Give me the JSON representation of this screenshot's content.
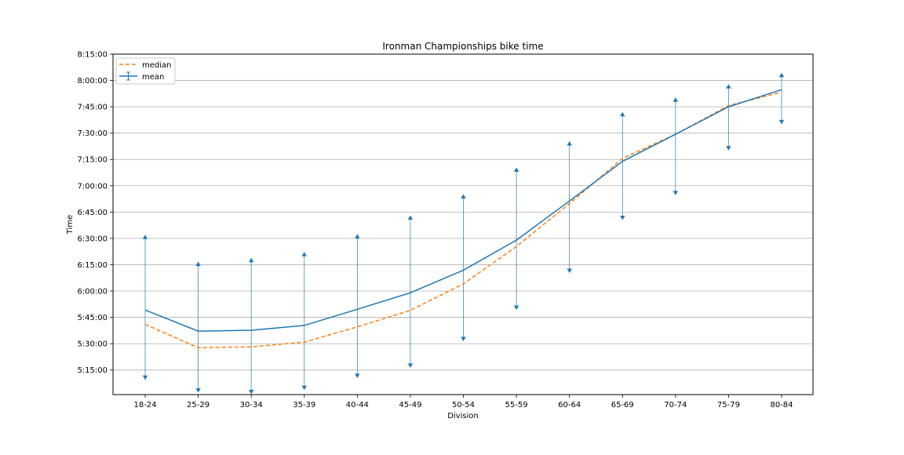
{
  "chart_data": {
    "type": "line",
    "title": "Ironman Championships bike time",
    "xlabel": "Division",
    "ylabel": "Time",
    "categories": [
      "18-24",
      "25-29",
      "30-34",
      "35-39",
      "40-44",
      "45-49",
      "50-54",
      "55-59",
      "60-64",
      "65-69",
      "70-74",
      "75-79",
      "80-84"
    ],
    "y_unit": "seconds",
    "ylim": [
      18060,
      29700
    ],
    "yticks": [
      18900,
      19800,
      20700,
      21600,
      22500,
      23400,
      24300,
      25200,
      26100,
      27000,
      27900,
      28800,
      29700
    ],
    "ytick_labels": [
      "5:15:00",
      "5:30:00",
      "5:45:00",
      "6:00:00",
      "6:15:00",
      "6:30:00",
      "6:45:00",
      "7:00:00",
      "7:15:00",
      "7:30:00",
      "7:45:00",
      "8:00:00",
      "8:15:00"
    ],
    "grid": "horizontal",
    "legend": "top-left",
    "series": [
      {
        "name": "median",
        "style": "dashed",
        "color": "#ff7f0e",
        "values": [
          20460,
          19665,
          19690,
          19855,
          20375,
          20940,
          21845,
          23125,
          24590,
          26135,
          26960,
          27940,
          28400
        ]
      },
      {
        "name": "mean",
        "style": "solid",
        "color": "#1f77b4",
        "values": [
          20950,
          20230,
          20260,
          20425,
          20975,
          21540,
          22315,
          23340,
          24680,
          26035,
          26960,
          27900,
          28485
        ],
        "error_lower": [
          18580,
          18140,
          18090,
          18230,
          18640,
          18990,
          19900,
          20970,
          22230,
          24040,
          24890,
          26420,
          27315
        ],
        "error_upper": [
          23510,
          22590,
          22720,
          22925,
          23535,
          24175,
          24900,
          25810,
          26710,
          27710,
          28205,
          28660,
          29050
        ]
      }
    ]
  }
}
